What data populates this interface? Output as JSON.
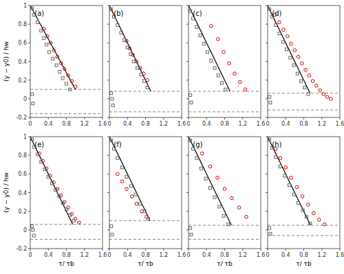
{
  "chart_data": [
    {
      "type": "scatter",
      "title": "(a)",
      "y_label": "(y − y0) / hw",
      "xlim": [
        0,
        1.6
      ],
      "ylim": [
        -0.2,
        1
      ],
      "xticks": [
        0,
        0.4,
        0.8,
        1.2,
        1.6
      ],
      "yticks": [
        -0.2,
        0,
        0.2,
        0.4,
        0.6,
        0.8,
        1
      ],
      "grid": false,
      "series": [
        {
          "type": "hline",
          "line_style": "dashed",
          "color": "#888888",
          "values": [
            0.1,
            -0.16
          ]
        },
        {
          "type": "line",
          "color": "#000000",
          "x": [
            0.0,
            1.0
          ],
          "values": [
            1.0,
            0.1
          ]
        },
        {
          "type": "scatter",
          "marker": "circle",
          "color": "#cc0000",
          "x": [
            0.3,
            0.38,
            0.45,
            0.52,
            0.6,
            0.68,
            0.76,
            0.84,
            0.92,
            1.0
          ],
          "values": [
            0.75,
            0.67,
            0.6,
            0.52,
            0.45,
            0.38,
            0.32,
            0.25,
            0.19,
            0.13
          ]
        },
        {
          "type": "scatter",
          "marker": "square",
          "color": "#666666",
          "x": [
            0.04,
            0.08,
            0.16,
            0.24,
            0.3,
            0.36,
            0.42,
            0.5,
            0.58,
            0.65,
            0.72,
            0.8,
            0.88,
            0.04,
            0.06
          ],
          "values": [
            0.97,
            0.9,
            0.82,
            0.73,
            0.65,
            0.58,
            0.5,
            0.43,
            0.36,
            0.29,
            0.22,
            0.16,
            0.1,
            0.05,
            -0.05
          ]
        }
      ]
    },
    {
      "type": "scatter",
      "title": "(b)",
      "tick_labels": "x",
      "xlim": [
        0,
        1.6
      ],
      "ylim": [
        -0.2,
        1
      ],
      "xticks": [
        0,
        0.4,
        0.8,
        1.2,
        1.6
      ],
      "yticks": [
        -0.2,
        0,
        0.2,
        0.4,
        0.6,
        0.8,
        1
      ],
      "grid": false,
      "series": [
        {
          "type": "hline",
          "line_style": "dashed",
          "color": "#888888",
          "values": [
            0.08,
            -0.14
          ]
        },
        {
          "type": "line",
          "color": "#000000",
          "x": [
            0.0,
            0.92
          ],
          "values": [
            1.0,
            0.08
          ]
        },
        {
          "type": "scatter",
          "marker": "circle",
          "color": "#cc0000",
          "x": [
            0.38,
            0.45,
            0.52,
            0.6,
            0.68,
            0.76,
            0.84
          ],
          "values": [
            0.62,
            0.54,
            0.47,
            0.4,
            0.33,
            0.27,
            0.2
          ]
        },
        {
          "type": "scatter",
          "marker": "square",
          "color": "#666666",
          "x": [
            0.04,
            0.1,
            0.18,
            0.26,
            0.33,
            0.4,
            0.47,
            0.54,
            0.62,
            0.7,
            0.77,
            0.84,
            0.04,
            0.06,
            0.08
          ],
          "values": [
            0.96,
            0.88,
            0.79,
            0.71,
            0.63,
            0.55,
            0.48,
            0.4,
            0.33,
            0.26,
            0.19,
            0.12,
            0.06,
            0.0,
            -0.07
          ]
        }
      ]
    },
    {
      "type": "scatter",
      "title": "(c)",
      "tick_labels": "x",
      "xlim": [
        0,
        1.6
      ],
      "ylim": [
        -0.2,
        1
      ],
      "xticks": [
        0,
        0.4,
        0.8,
        1.2,
        1.6
      ],
      "yticks": [
        -0.2,
        0,
        0.2,
        0.4,
        0.6,
        0.8,
        1
      ],
      "grid": false,
      "series": [
        {
          "type": "hline",
          "line_style": "dashed",
          "color": "#888888",
          "values": [
            0.08,
            -0.14
          ]
        },
        {
          "type": "line",
          "color": "#000000",
          "x": [
            0.0,
            0.92
          ],
          "values": [
            1.0,
            0.08
          ]
        },
        {
          "type": "scatter",
          "marker": "circle",
          "color": "#cc0000",
          "x": [
            0.5,
            0.65,
            0.78,
            0.9,
            1.02,
            1.14,
            1.26
          ],
          "values": [
            0.78,
            0.64,
            0.5,
            0.38,
            0.27,
            0.18,
            0.1
          ]
        },
        {
          "type": "scatter",
          "marker": "square",
          "color": "#666666",
          "x": [
            0.04,
            0.1,
            0.18,
            0.26,
            0.34,
            0.42,
            0.5,
            0.58,
            0.66,
            0.74,
            0.82,
            0.04,
            0.06
          ],
          "values": [
            0.94,
            0.86,
            0.77,
            0.68,
            0.59,
            0.5,
            0.41,
            0.33,
            0.25,
            0.17,
            0.1,
            0.04,
            -0.04
          ]
        }
      ]
    },
    {
      "type": "scatter",
      "title": "(d)",
      "tick_labels": "x",
      "xlim": [
        0,
        1.6
      ],
      "ylim": [
        -0.2,
        1
      ],
      "xticks": [
        0,
        0.4,
        0.8,
        1.2,
        1.6
      ],
      "yticks": [
        -0.2,
        0,
        0.2,
        0.4,
        0.6,
        0.8,
        1
      ],
      "grid": false,
      "series": [
        {
          "type": "hline",
          "line_style": "dashed",
          "color": "#888888",
          "values": [
            0.06,
            -0.12
          ]
        },
        {
          "type": "line",
          "color": "#000000",
          "x": [
            0.0,
            0.94
          ],
          "values": [
            1.0,
            0.06
          ]
        },
        {
          "type": "scatter",
          "marker": "circle",
          "color": "#cc0000",
          "x": [
            0.16,
            0.26,
            0.35,
            0.44,
            0.52,
            0.6,
            0.68,
            0.76,
            0.84,
            0.92,
            1.0,
            1.08,
            1.16,
            1.24,
            1.32,
            1.4
          ],
          "values": [
            0.9,
            0.82,
            0.74,
            0.67,
            0.59,
            0.52,
            0.45,
            0.38,
            0.31,
            0.25,
            0.19,
            0.14,
            0.09,
            0.05,
            0.02,
            0.0
          ]
        },
        {
          "type": "scatter",
          "marker": "square",
          "color": "#666666",
          "x": [
            0.04,
            0.1,
            0.18,
            0.26,
            0.34,
            0.42,
            0.5,
            0.58,
            0.66,
            0.74,
            0.82,
            0.9,
            0.04,
            0.06
          ],
          "values": [
            0.96,
            0.88,
            0.79,
            0.7,
            0.61,
            0.53,
            0.44,
            0.36,
            0.27,
            0.19,
            0.12,
            0.05,
            0.02,
            -0.04
          ]
        }
      ]
    },
    {
      "type": "scatter",
      "title": "(e)",
      "x_label": "τ/ τb",
      "y_label": "(y − y0) / hw",
      "xlim": [
        0,
        1.6
      ],
      "ylim": [
        -0.2,
        1
      ],
      "xticks": [
        0,
        0.4,
        0.8,
        1.2,
        1.6
      ],
      "yticks": [
        -0.2,
        0,
        0.2,
        0.4,
        0.6,
        0.8,
        1
      ],
      "grid": false,
      "series": [
        {
          "type": "hline",
          "line_style": "dashed",
          "color": "#888888",
          "values": [
            0.06,
            -0.1
          ]
        },
        {
          "type": "line",
          "color": "#000000",
          "x": [
            0.0,
            0.94
          ],
          "values": [
            1.0,
            0.06
          ]
        },
        {
          "type": "scatter",
          "marker": "circle",
          "color": "#cc0000",
          "x": [
            0.2,
            0.28,
            0.36,
            0.44,
            0.52,
            0.6,
            0.68,
            0.76,
            0.84,
            0.92,
            1.0,
            1.08
          ],
          "values": [
            0.82,
            0.74,
            0.66,
            0.58,
            0.51,
            0.44,
            0.37,
            0.3,
            0.24,
            0.17,
            0.12,
            0.08
          ]
        },
        {
          "type": "scatter",
          "marker": "square",
          "color": "#666666",
          "x": [
            0.04,
            0.08,
            0.16,
            0.24,
            0.32,
            0.4,
            0.48,
            0.56,
            0.64,
            0.72,
            0.8,
            0.88,
            0.96,
            0.04,
            0.06,
            0.08
          ],
          "values": [
            0.97,
            0.89,
            0.81,
            0.73,
            0.65,
            0.57,
            0.5,
            0.43,
            0.36,
            0.29,
            0.22,
            0.16,
            0.1,
            0.04,
            0.0,
            -0.06
          ]
        }
      ]
    },
    {
      "type": "scatter",
      "title": "(f)",
      "x_label": "τ/ τb",
      "tick_labels": "x",
      "xlim": [
        0,
        1.6
      ],
      "ylim": [
        -0.2,
        1
      ],
      "xticks": [
        0,
        0.4,
        0.8,
        1.2,
        1.6
      ],
      "yticks": [
        -0.2,
        0,
        0.2,
        0.4,
        0.6,
        0.8,
        1
      ],
      "grid": false,
      "series": [
        {
          "type": "hline",
          "line_style": "dashed",
          "color": "#888888",
          "values": [
            0.1,
            -0.1
          ]
        },
        {
          "type": "line",
          "color": "#000000",
          "x": [
            0.0,
            0.9
          ],
          "values": [
            1.0,
            0.1
          ]
        },
        {
          "type": "scatter",
          "marker": "circle",
          "color": "#cc0000",
          "x": [
            0.18,
            0.28,
            0.38,
            0.5,
            0.6,
            0.72,
            0.82
          ],
          "values": [
            0.6,
            0.52,
            0.44,
            0.36,
            0.28,
            0.2,
            0.14
          ]
        },
        {
          "type": "scatter",
          "marker": "square",
          "color": "#666666",
          "x": [
            0.04,
            0.1,
            0.18,
            0.28,
            0.38,
            0.48,
            0.58,
            0.68,
            0.78,
            0.86,
            0.04,
            0.06
          ],
          "values": [
            0.96,
            0.87,
            0.77,
            0.67,
            0.57,
            0.47,
            0.38,
            0.28,
            0.2,
            0.12,
            0.04,
            -0.05
          ]
        }
      ]
    },
    {
      "type": "scatter",
      "title": "(g)",
      "x_label": "τ/ τb",
      "tick_labels": "x",
      "xlim": [
        0,
        1.6
      ],
      "ylim": [
        -0.2,
        1
      ],
      "xticks": [
        0,
        0.4,
        0.8,
        1.2,
        1.6
      ],
      "yticks": [
        -0.2,
        0,
        0.2,
        0.4,
        0.6,
        0.8,
        1
      ],
      "grid": false,
      "series": [
        {
          "type": "hline",
          "line_style": "dashed",
          "color": "#888888",
          "values": [
            0.05,
            -0.1
          ]
        },
        {
          "type": "line",
          "color": "#000000",
          "x": [
            0.0,
            0.95
          ],
          "values": [
            1.0,
            0.05
          ]
        },
        {
          "type": "scatter",
          "marker": "circle",
          "color": "#cc0000",
          "x": [
            0.3,
            0.48,
            0.64,
            0.8,
            0.96,
            1.12,
            1.28
          ],
          "values": [
            0.82,
            0.68,
            0.56,
            0.44,
            0.34,
            0.24,
            0.14
          ]
        },
        {
          "type": "scatter",
          "marker": "square",
          "color": "#666666",
          "x": [
            0.04,
            0.1,
            0.18,
            0.28,
            0.38,
            0.48,
            0.58,
            0.68,
            0.78,
            0.88,
            0.04,
            0.06
          ],
          "values": [
            0.96,
            0.87,
            0.77,
            0.66,
            0.55,
            0.45,
            0.35,
            0.25,
            0.15,
            0.06,
            0.02,
            -0.05
          ]
        }
      ]
    },
    {
      "type": "scatter",
      "title": "(h)",
      "x_label": "τ/ τb",
      "tick_labels": "x",
      "xlim": [
        0,
        1.6
      ],
      "ylim": [
        -0.2,
        1
      ],
      "xticks": [
        0,
        0.4,
        0.8,
        1.2,
        1.6
      ],
      "yticks": [
        -0.2,
        0,
        0.2,
        0.4,
        0.6,
        0.8,
        1
      ],
      "grid": false,
      "series": [
        {
          "type": "hline",
          "line_style": "dashed",
          "color": "#888888",
          "values": [
            0.05,
            -0.06
          ]
        },
        {
          "type": "line",
          "color": "#000000",
          "x": [
            0.0,
            0.95
          ],
          "values": [
            1.0,
            0.05
          ]
        },
        {
          "type": "scatter",
          "marker": "circle",
          "color": "#cc0000",
          "x": [
            0.18,
            0.28,
            0.4,
            0.52,
            0.65,
            0.77,
            0.9,
            1.02,
            1.14,
            1.26
          ],
          "values": [
            0.87,
            0.77,
            0.67,
            0.56,
            0.46,
            0.36,
            0.27,
            0.18,
            0.11,
            0.06
          ]
        },
        {
          "type": "scatter",
          "marker": "square",
          "color": "#666666",
          "x": [
            0.04,
            0.1,
            0.18,
            0.28,
            0.38,
            0.48,
            0.58,
            0.68,
            0.78,
            0.86,
            0.94,
            0.04,
            0.06
          ],
          "values": [
            0.97,
            0.88,
            0.78,
            0.68,
            0.58,
            0.48,
            0.38,
            0.29,
            0.21,
            0.14,
            0.07,
            0.02,
            -0.04
          ]
        }
      ]
    }
  ]
}
